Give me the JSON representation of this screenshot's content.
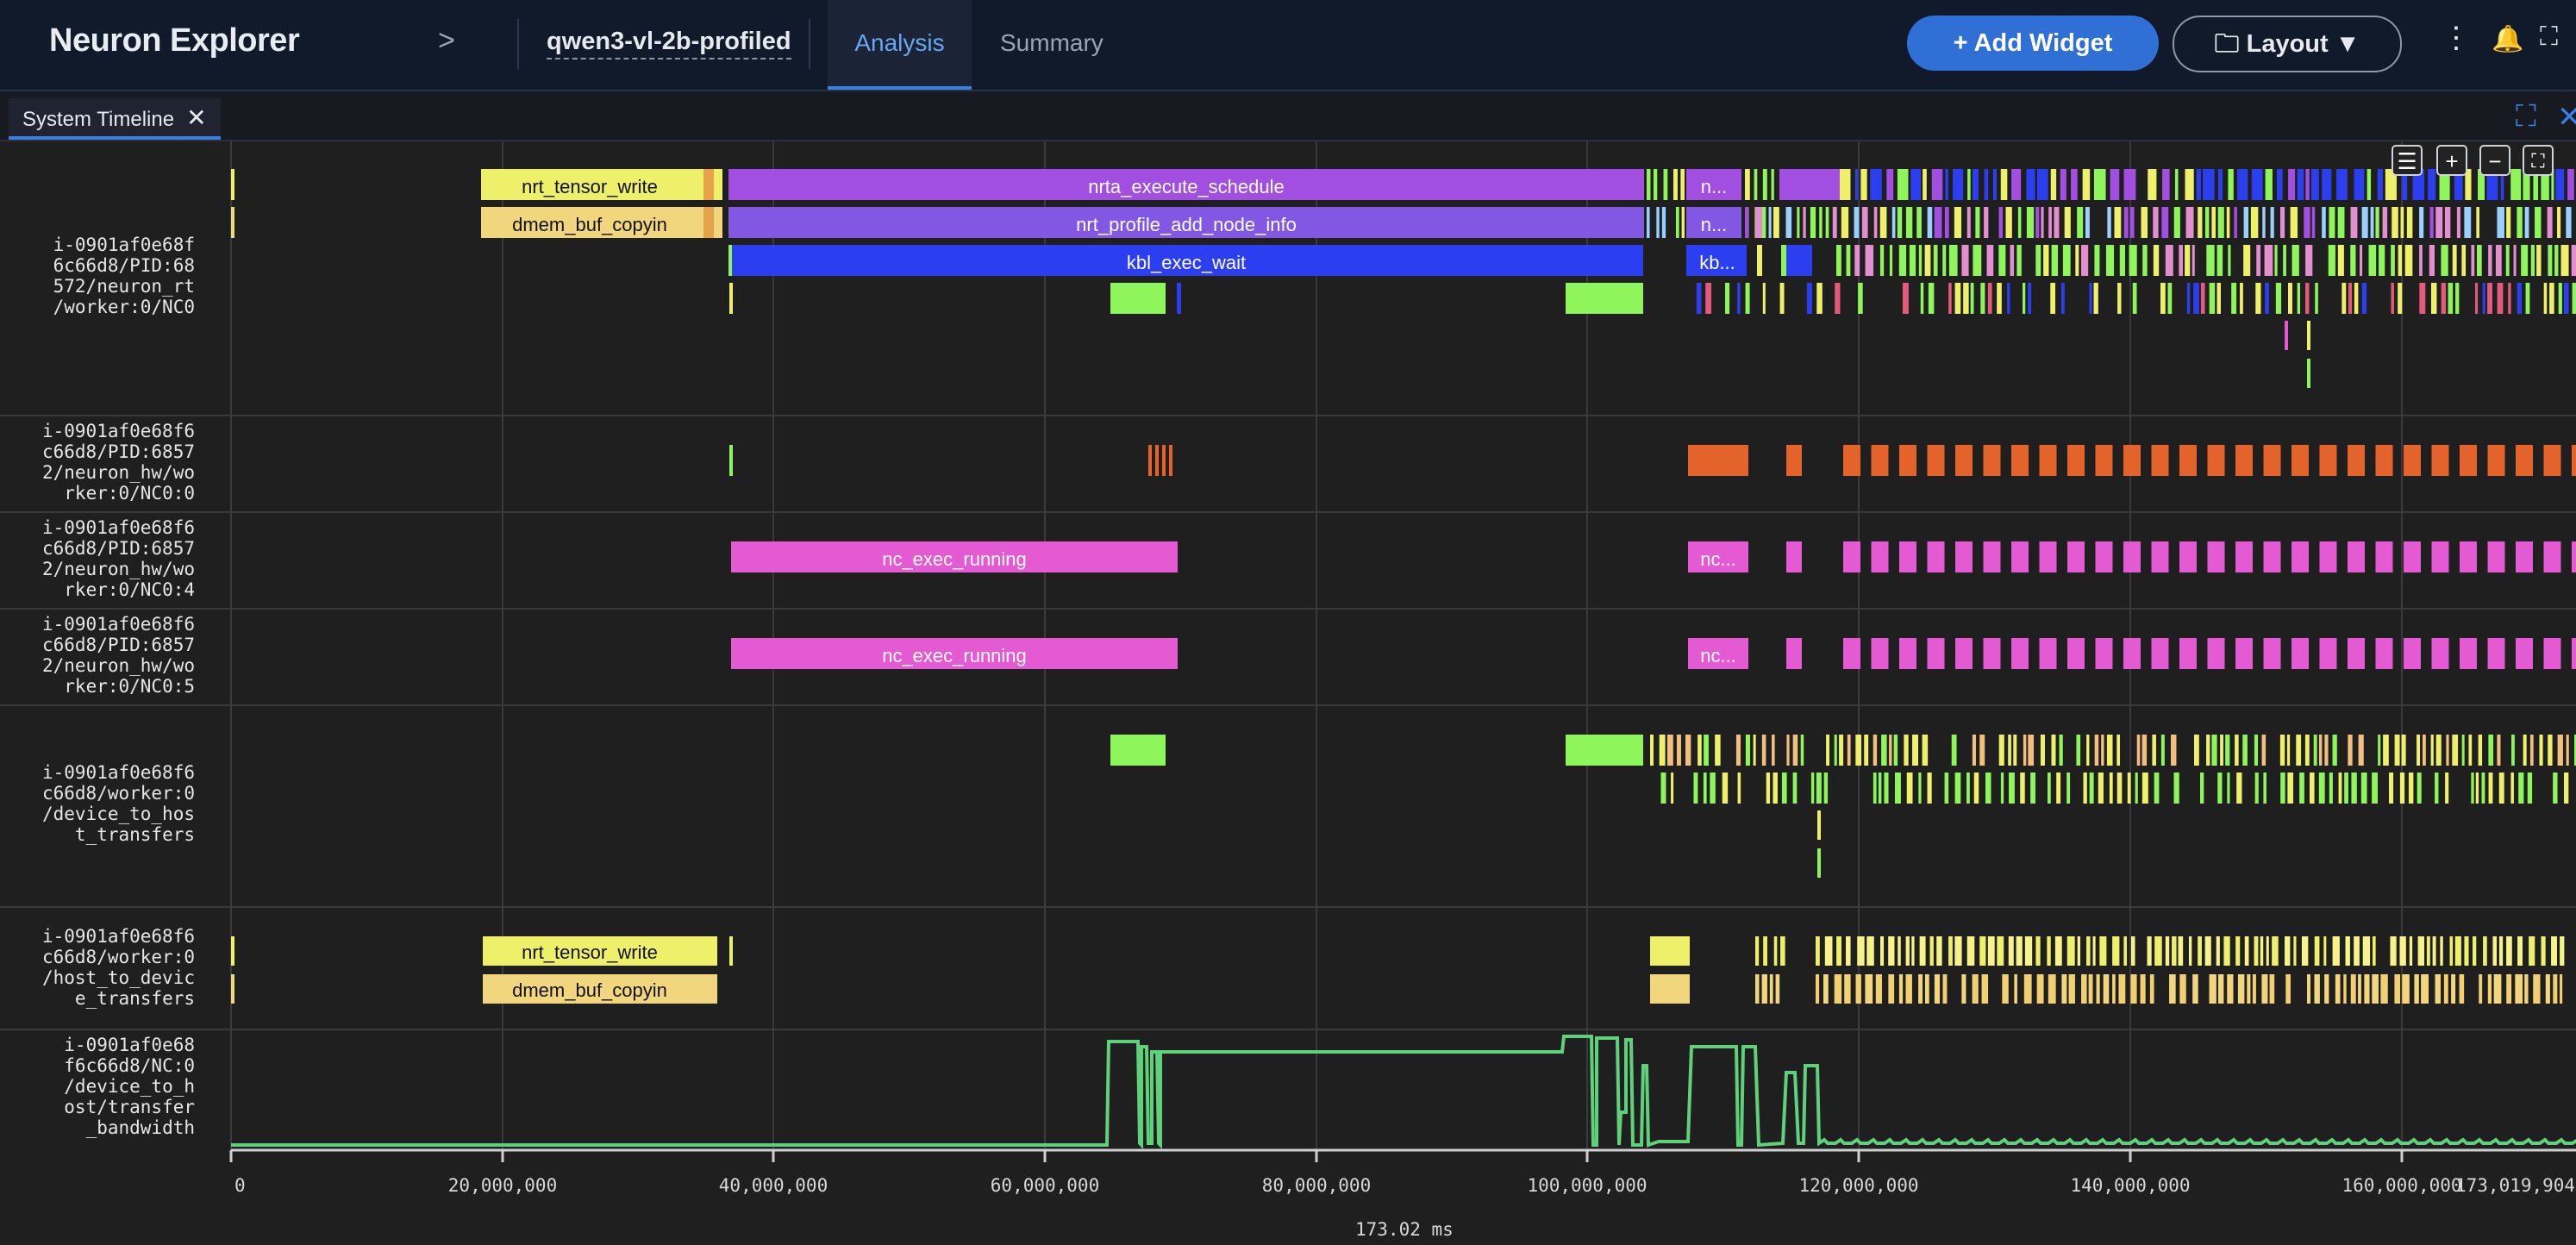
{
  "header": {
    "brand": "Neuron Explorer",
    "chevron": ">",
    "project": "qwen3-vl-2b-profiled",
    "tabs": [
      {
        "label": "Analysis",
        "active": true
      },
      {
        "label": "Summary",
        "active": false
      }
    ],
    "add_widget_label": "+ Add Widget",
    "layout_label": "Layout",
    "icons": [
      "more-vertical-icon",
      "bell-icon",
      "fullscreen-icon"
    ]
  },
  "panel": {
    "tab_label": "System Timeline",
    "tab_close": "✕"
  },
  "rows": [
    {
      "label": "i-0901af0e68f\n6c66d8/PID:68\n572/neuron_rt\n/worker:0/NC0"
    },
    {
      "label": "i-0901af0e68f6\nc66d8/PID:6857\n2/neuron_hw/wo\nrker:0/NC0:0"
    },
    {
      "label": "i-0901af0e68f6\nc66d8/PID:6857\n2/neuron_hw/wo\nrker:0/NC0:4"
    },
    {
      "label": "i-0901af0e68f6\nc66d8/PID:6857\n2/neuron_hw/wo\nrker:0/NC0:5"
    },
    {
      "label": "i-0901af0e68f6\nc66d8/worker:0\n/device_to_hos\nt_transfers"
    },
    {
      "label": "i-0901af0e68f6\nc66d8/worker:0\n/host_to_devic\ne_transfers"
    },
    {
      "label": "i-0901af0e68\nf6c66d8/NC:0\n/device_to_h\nost/transfer\n_bandwidth"
    }
  ],
  "events": {
    "nrt_tensor_write": "nrt_tensor_write",
    "dmem_buf_copyin": "dmem_buf_copyin",
    "nrta_execute_schedule": "nrta_execute_schedule",
    "nrt_profile_add_node_info": "nrt_profile_add_node_info",
    "kbl_exec_wait": "kbl_exec_wait",
    "nc_exec_running": "nc_exec_running",
    "n_short": "n...",
    "kb_short": "kb...",
    "nc_short": "nc..."
  },
  "axis": {
    "ticks": [
      "0",
      "20,000,000",
      "40,000,000",
      "60,000,000",
      "80,000,000",
      "100,000,000",
      "120,000,000",
      "140,000,000",
      "160,000,000"
    ],
    "end_label": "173,019,904",
    "unit_label": "173.02 ms",
    "max": 173019904
  },
  "colors": {
    "yellow": "#eef06a",
    "tan": "#f2d67e",
    "purple": "#a24ee0",
    "violet": "#8257e3",
    "blue": "#2c3ff0",
    "green": "#8ef55a",
    "orange": "#e3632b",
    "pink": "#e35ad3",
    "line": "#5fd17a",
    "accent": "#3d7fdf"
  }
}
